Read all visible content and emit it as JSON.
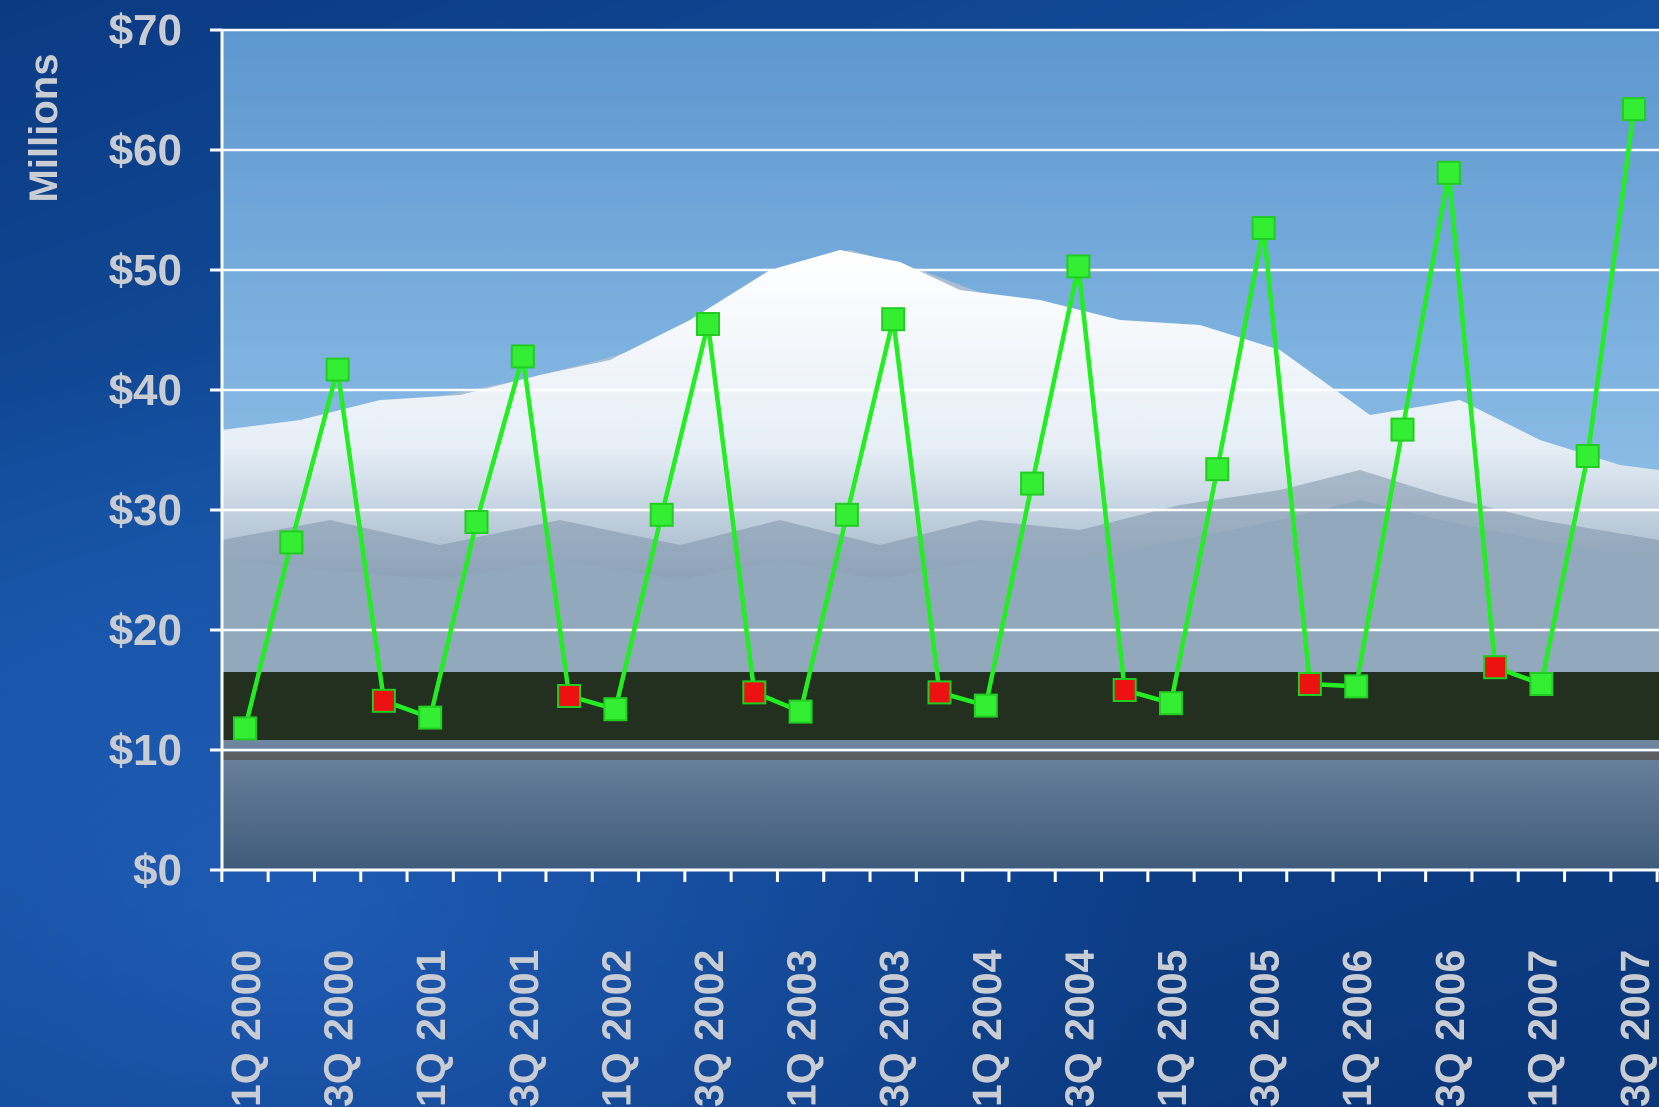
{
  "chart_data": {
    "type": "line",
    "title": "",
    "ylabel": "Millions",
    "xlabel": "",
    "ylim": [
      0,
      70
    ],
    "yticks": [
      0,
      10,
      20,
      30,
      40,
      50,
      60,
      70
    ],
    "ytick_labels": [
      "$0",
      "$10",
      "$20",
      "$30",
      "$40",
      "$50",
      "$60",
      "$70"
    ],
    "grid": true,
    "legend": "none",
    "categories": [
      "1Q 2000",
      "2Q 2000",
      "3Q 2000",
      "4Q 2000",
      "1Q 2001",
      "2Q 2001",
      "3Q 2001",
      "4Q 2001",
      "1Q 2002",
      "2Q 2002",
      "3Q 2002",
      "4Q 2002",
      "1Q 2003",
      "2Q 2003",
      "3Q 2003",
      "4Q 2003",
      "1Q 2004",
      "2Q 2004",
      "3Q 2004",
      "4Q 2004",
      "1Q 2005",
      "2Q 2005",
      "3Q 2005",
      "4Q 2005",
      "1Q 2006",
      "2Q 2006",
      "3Q 2006",
      "4Q 2006",
      "1Q 2007",
      "2Q 2007",
      "3Q 2007"
    ],
    "xtick_labels": [
      "1Q 2000",
      "3Q 2000",
      "1Q 2001",
      "3Q 2001",
      "1Q 2002",
      "3Q 2002",
      "1Q 2003",
      "3Q 2003",
      "1Q 2004",
      "3Q 2004",
      "1Q 2005",
      "3Q 2005",
      "1Q 2006",
      "3Q 2006",
      "1Q 2007",
      "3Q 2007"
    ],
    "values": [
      11.8,
      27.3,
      41.7,
      14.1,
      12.7,
      29.0,
      42.8,
      14.5,
      13.4,
      29.6,
      45.5,
      14.8,
      13.2,
      29.6,
      45.9,
      14.8,
      13.7,
      32.2,
      50.3,
      15.0,
      13.9,
      33.4,
      53.5,
      15.5,
      15.3,
      36.7,
      58.1,
      16.9,
      15.5,
      34.5,
      63.4
    ],
    "marker_colors": [
      "green",
      "green",
      "green",
      "red",
      "green",
      "green",
      "green",
      "red",
      "green",
      "green",
      "green",
      "red",
      "green",
      "green",
      "green",
      "red",
      "green",
      "green",
      "green",
      "red",
      "green",
      "green",
      "green",
      "red",
      "green",
      "green",
      "green",
      "red",
      "green",
      "green",
      "green"
    ],
    "colors": {
      "line": "#22ee22",
      "marker_green": "#33ee33",
      "marker_red": "#ee1111",
      "marker_edge": "#22cc22",
      "gridline": "#ffffff",
      "tick_text": "#c9cdd3"
    },
    "background": "mountain landscape photo (snow-capped peak, forest, river)"
  }
}
